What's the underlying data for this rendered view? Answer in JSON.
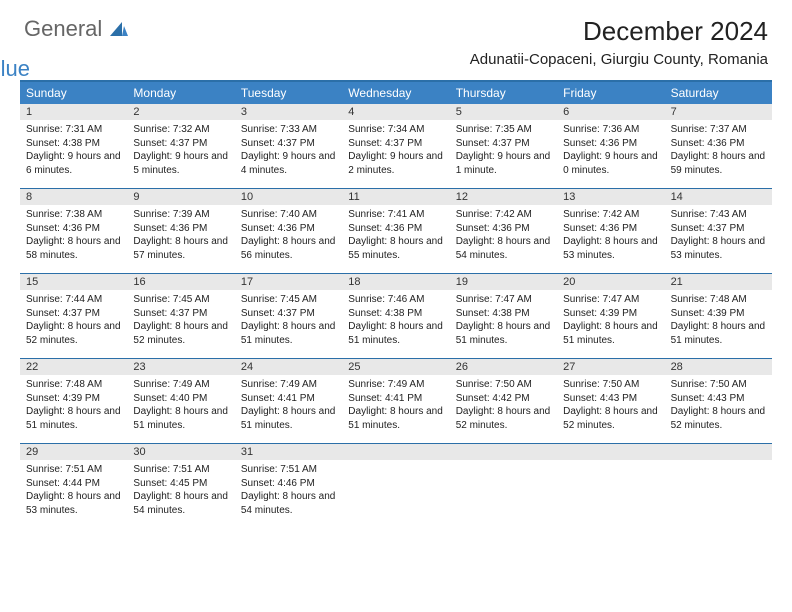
{
  "brand": {
    "part1": "General",
    "part2": "Blue"
  },
  "title": "December 2024",
  "location": "Adunatii-Copaceni, Giurgiu County, Romania",
  "colors": {
    "header_bg": "#3b82c4",
    "border": "#2b6fa8",
    "daynum_bg": "#e8e8e8",
    "text": "#222222",
    "logo_gray": "#666666",
    "logo_blue": "#3b82c4"
  },
  "day_names": [
    "Sunday",
    "Monday",
    "Tuesday",
    "Wednesday",
    "Thursday",
    "Friday",
    "Saturday"
  ],
  "weeks": [
    [
      {
        "n": "1",
        "sunrise": "Sunrise: 7:31 AM",
        "sunset": "Sunset: 4:38 PM",
        "daylight": "Daylight: 9 hours and 6 minutes."
      },
      {
        "n": "2",
        "sunrise": "Sunrise: 7:32 AM",
        "sunset": "Sunset: 4:37 PM",
        "daylight": "Daylight: 9 hours and 5 minutes."
      },
      {
        "n": "3",
        "sunrise": "Sunrise: 7:33 AM",
        "sunset": "Sunset: 4:37 PM",
        "daylight": "Daylight: 9 hours and 4 minutes."
      },
      {
        "n": "4",
        "sunrise": "Sunrise: 7:34 AM",
        "sunset": "Sunset: 4:37 PM",
        "daylight": "Daylight: 9 hours and 2 minutes."
      },
      {
        "n": "5",
        "sunrise": "Sunrise: 7:35 AM",
        "sunset": "Sunset: 4:37 PM",
        "daylight": "Daylight: 9 hours and 1 minute."
      },
      {
        "n": "6",
        "sunrise": "Sunrise: 7:36 AM",
        "sunset": "Sunset: 4:36 PM",
        "daylight": "Daylight: 9 hours and 0 minutes."
      },
      {
        "n": "7",
        "sunrise": "Sunrise: 7:37 AM",
        "sunset": "Sunset: 4:36 PM",
        "daylight": "Daylight: 8 hours and 59 minutes."
      }
    ],
    [
      {
        "n": "8",
        "sunrise": "Sunrise: 7:38 AM",
        "sunset": "Sunset: 4:36 PM",
        "daylight": "Daylight: 8 hours and 58 minutes."
      },
      {
        "n": "9",
        "sunrise": "Sunrise: 7:39 AM",
        "sunset": "Sunset: 4:36 PM",
        "daylight": "Daylight: 8 hours and 57 minutes."
      },
      {
        "n": "10",
        "sunrise": "Sunrise: 7:40 AM",
        "sunset": "Sunset: 4:36 PM",
        "daylight": "Daylight: 8 hours and 56 minutes."
      },
      {
        "n": "11",
        "sunrise": "Sunrise: 7:41 AM",
        "sunset": "Sunset: 4:36 PM",
        "daylight": "Daylight: 8 hours and 55 minutes."
      },
      {
        "n": "12",
        "sunrise": "Sunrise: 7:42 AM",
        "sunset": "Sunset: 4:36 PM",
        "daylight": "Daylight: 8 hours and 54 minutes."
      },
      {
        "n": "13",
        "sunrise": "Sunrise: 7:42 AM",
        "sunset": "Sunset: 4:36 PM",
        "daylight": "Daylight: 8 hours and 53 minutes."
      },
      {
        "n": "14",
        "sunrise": "Sunrise: 7:43 AM",
        "sunset": "Sunset: 4:37 PM",
        "daylight": "Daylight: 8 hours and 53 minutes."
      }
    ],
    [
      {
        "n": "15",
        "sunrise": "Sunrise: 7:44 AM",
        "sunset": "Sunset: 4:37 PM",
        "daylight": "Daylight: 8 hours and 52 minutes."
      },
      {
        "n": "16",
        "sunrise": "Sunrise: 7:45 AM",
        "sunset": "Sunset: 4:37 PM",
        "daylight": "Daylight: 8 hours and 52 minutes."
      },
      {
        "n": "17",
        "sunrise": "Sunrise: 7:45 AM",
        "sunset": "Sunset: 4:37 PM",
        "daylight": "Daylight: 8 hours and 51 minutes."
      },
      {
        "n": "18",
        "sunrise": "Sunrise: 7:46 AM",
        "sunset": "Sunset: 4:38 PM",
        "daylight": "Daylight: 8 hours and 51 minutes."
      },
      {
        "n": "19",
        "sunrise": "Sunrise: 7:47 AM",
        "sunset": "Sunset: 4:38 PM",
        "daylight": "Daylight: 8 hours and 51 minutes."
      },
      {
        "n": "20",
        "sunrise": "Sunrise: 7:47 AM",
        "sunset": "Sunset: 4:39 PM",
        "daylight": "Daylight: 8 hours and 51 minutes."
      },
      {
        "n": "21",
        "sunrise": "Sunrise: 7:48 AM",
        "sunset": "Sunset: 4:39 PM",
        "daylight": "Daylight: 8 hours and 51 minutes."
      }
    ],
    [
      {
        "n": "22",
        "sunrise": "Sunrise: 7:48 AM",
        "sunset": "Sunset: 4:39 PM",
        "daylight": "Daylight: 8 hours and 51 minutes."
      },
      {
        "n": "23",
        "sunrise": "Sunrise: 7:49 AM",
        "sunset": "Sunset: 4:40 PM",
        "daylight": "Daylight: 8 hours and 51 minutes."
      },
      {
        "n": "24",
        "sunrise": "Sunrise: 7:49 AM",
        "sunset": "Sunset: 4:41 PM",
        "daylight": "Daylight: 8 hours and 51 minutes."
      },
      {
        "n": "25",
        "sunrise": "Sunrise: 7:49 AM",
        "sunset": "Sunset: 4:41 PM",
        "daylight": "Daylight: 8 hours and 51 minutes."
      },
      {
        "n": "26",
        "sunrise": "Sunrise: 7:50 AM",
        "sunset": "Sunset: 4:42 PM",
        "daylight": "Daylight: 8 hours and 52 minutes."
      },
      {
        "n": "27",
        "sunrise": "Sunrise: 7:50 AM",
        "sunset": "Sunset: 4:43 PM",
        "daylight": "Daylight: 8 hours and 52 minutes."
      },
      {
        "n": "28",
        "sunrise": "Sunrise: 7:50 AM",
        "sunset": "Sunset: 4:43 PM",
        "daylight": "Daylight: 8 hours and 52 minutes."
      }
    ],
    [
      {
        "n": "29",
        "sunrise": "Sunrise: 7:51 AM",
        "sunset": "Sunset: 4:44 PM",
        "daylight": "Daylight: 8 hours and 53 minutes."
      },
      {
        "n": "30",
        "sunrise": "Sunrise: 7:51 AM",
        "sunset": "Sunset: 4:45 PM",
        "daylight": "Daylight: 8 hours and 54 minutes."
      },
      {
        "n": "31",
        "sunrise": "Sunrise: 7:51 AM",
        "sunset": "Sunset: 4:46 PM",
        "daylight": "Daylight: 8 hours and 54 minutes."
      },
      {
        "empty": true
      },
      {
        "empty": true
      },
      {
        "empty": true
      },
      {
        "empty": true
      }
    ]
  ]
}
